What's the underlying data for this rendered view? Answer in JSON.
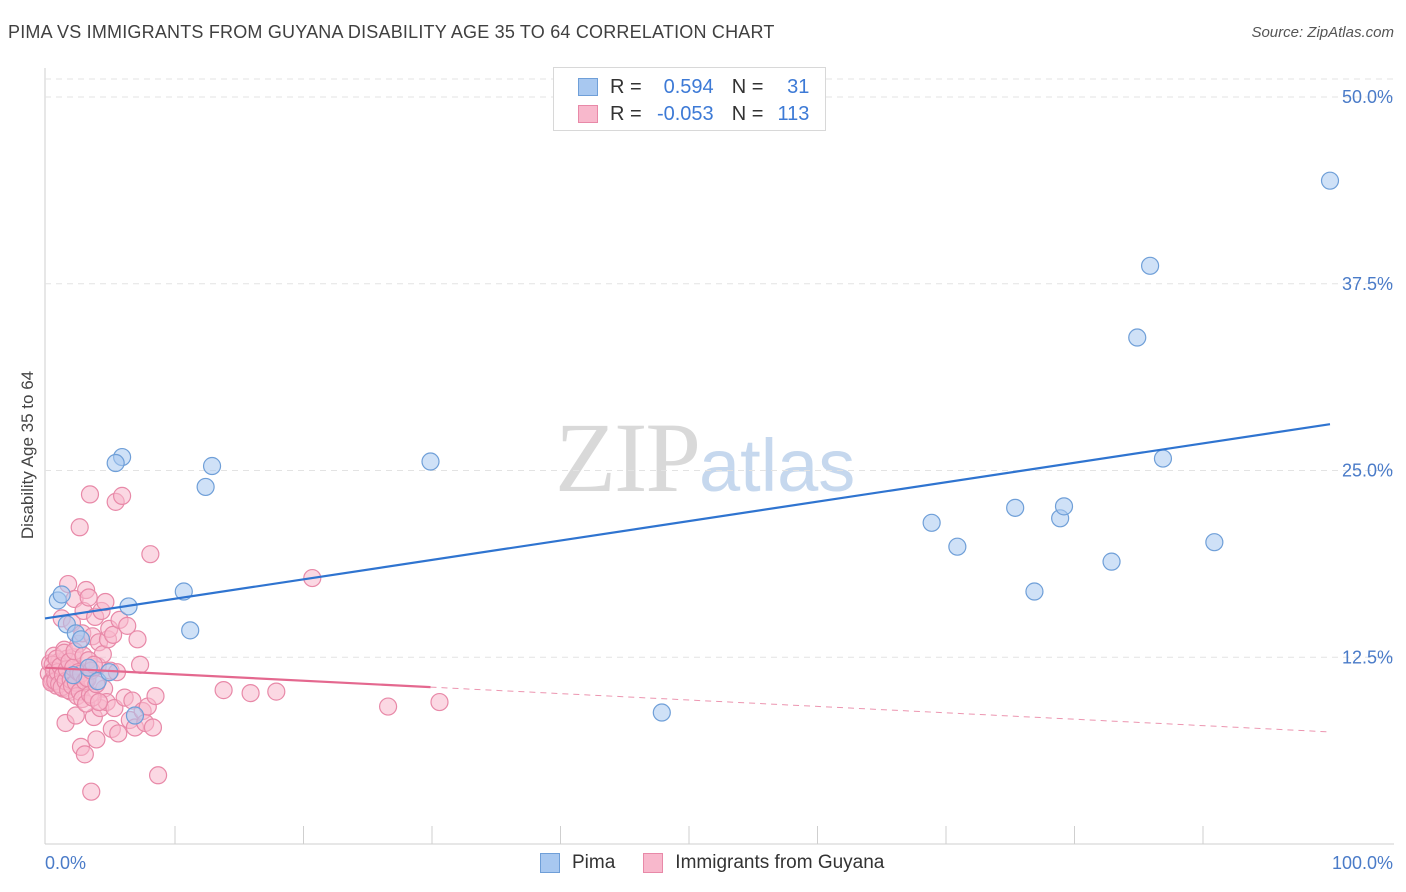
{
  "title": "PIMA VS IMMIGRANTS FROM GUYANA DISABILITY AGE 35 TO 64 CORRELATION CHART",
  "source": "Source: ZipAtlas.com",
  "watermark": {
    "zip": "ZIP",
    "atlas": "atlas"
  },
  "colors": {
    "pima_fill": "#a8c8f0",
    "pima_stroke": "#6f9fd8",
    "pima_line": "#2f74d0",
    "guyana_fill": "#f8b8cc",
    "guyana_stroke": "#e889a8",
    "guyana_line": "#e4688f",
    "tick_text": "#4a7bc8",
    "grid": "#e3e3e3"
  },
  "legend": {
    "rows": [
      {
        "r_label": "R =",
        "r_value": "0.594",
        "n_label": "N =",
        "n_value": "31"
      },
      {
        "r_label": "R =",
        "r_value": "-0.053",
        "n_label": "N =",
        "n_value": "113"
      }
    ]
  },
  "bottom_legend": {
    "pima": "Pima",
    "guyana": "Immigrants from Guyana"
  },
  "chart_data": {
    "type": "scatter",
    "title": "PIMA VS IMMIGRANTS FROM GUYANA DISABILITY AGE 35 TO 64 CORRELATION CHART",
    "xlabel": "",
    "ylabel": "Disability Age 35 to 64",
    "xlim": [
      0,
      100
    ],
    "ylim": [
      0,
      50
    ],
    "x_tick_labels": [
      "0.0%",
      "100.0%"
    ],
    "y_ticks": [
      12.5,
      25.0,
      37.5,
      50.0
    ],
    "y_tick_labels": [
      "12.5%",
      "25.0%",
      "37.5%",
      "50.0%"
    ],
    "grid": true,
    "series": [
      {
        "name": "Pima",
        "points": [
          [
            1.0,
            16.3
          ],
          [
            1.3,
            16.7
          ],
          [
            1.7,
            14.7
          ],
          [
            2.4,
            14.1
          ],
          [
            2.8,
            13.7
          ],
          [
            3.4,
            11.8
          ],
          [
            4.1,
            10.9
          ],
          [
            5.0,
            11.5
          ],
          [
            6.0,
            25.9
          ],
          [
            6.5,
            15.9
          ],
          [
            5.5,
            25.5
          ],
          [
            10.8,
            16.9
          ],
          [
            11.3,
            14.3
          ],
          [
            12.5,
            23.9
          ],
          [
            13.0,
            25.3
          ],
          [
            30.0,
            25.6
          ],
          [
            48.0,
            8.8
          ],
          [
            69.0,
            21.5
          ],
          [
            71.0,
            19.9
          ],
          [
            75.5,
            22.5
          ],
          [
            77.0,
            16.9
          ],
          [
            79.0,
            21.8
          ],
          [
            79.3,
            22.6
          ],
          [
            83.0,
            18.9
          ],
          [
            85.0,
            33.9
          ],
          [
            86.0,
            38.7
          ],
          [
            87.0,
            25.8
          ],
          [
            91.0,
            20.2
          ],
          [
            100.0,
            44.4
          ],
          [
            2.2,
            11.3
          ],
          [
            7.0,
            8.6
          ]
        ]
      },
      {
        "name": "Immigrants from Guyana",
        "points": [
          [
            0.3,
            11.4
          ],
          [
            0.4,
            12.1
          ],
          [
            0.5,
            10.9
          ],
          [
            0.6,
            11.0
          ],
          [
            0.7,
            12.6
          ],
          [
            0.8,
            11.2
          ],
          [
            0.9,
            10.6
          ],
          [
            1.0,
            11.8
          ],
          [
            1.1,
            12.2
          ],
          [
            1.2,
            11.1
          ],
          [
            1.3,
            15.1
          ],
          [
            1.4,
            10.4
          ],
          [
            1.5,
            13.0
          ],
          [
            1.6,
            8.1
          ],
          [
            1.7,
            12.4
          ],
          [
            1.8,
            17.4
          ],
          [
            1.9,
            11.3
          ],
          [
            2.0,
            10.2
          ],
          [
            2.1,
            14.8
          ],
          [
            2.2,
            12.5
          ],
          [
            2.3,
            16.4
          ],
          [
            2.4,
            8.6
          ],
          [
            2.5,
            11.7
          ],
          [
            2.6,
            13.4
          ],
          [
            2.7,
            21.2
          ],
          [
            2.8,
            6.5
          ],
          [
            2.9,
            14.1
          ],
          [
            3.0,
            15.6
          ],
          [
            3.1,
            6.0
          ],
          [
            3.2,
            17.0
          ],
          [
            3.3,
            11.0
          ],
          [
            3.4,
            16.5
          ],
          [
            3.5,
            23.4
          ],
          [
            3.6,
            3.5
          ],
          [
            3.7,
            13.9
          ],
          [
            3.8,
            8.5
          ],
          [
            3.9,
            15.2
          ],
          [
            4.0,
            7.0
          ],
          [
            4.1,
            11.9
          ],
          [
            4.2,
            13.5
          ],
          [
            4.3,
            9.1
          ],
          [
            4.4,
            15.6
          ],
          [
            4.5,
            12.7
          ],
          [
            4.6,
            10.4
          ],
          [
            4.7,
            16.2
          ],
          [
            4.8,
            9.5
          ],
          [
            4.9,
            13.7
          ],
          [
            5.0,
            14.4
          ],
          [
            5.1,
            11.6
          ],
          [
            5.2,
            7.7
          ],
          [
            5.3,
            14.0
          ],
          [
            5.4,
            9.1
          ],
          [
            5.5,
            22.9
          ],
          [
            5.6,
            11.5
          ],
          [
            5.7,
            7.4
          ],
          [
            5.8,
            15.0
          ],
          [
            6.0,
            23.3
          ],
          [
            6.2,
            9.8
          ],
          [
            6.4,
            14.6
          ],
          [
            6.6,
            8.3
          ],
          [
            6.8,
            9.6
          ],
          [
            7.0,
            7.8
          ],
          [
            7.2,
            13.7
          ],
          [
            7.4,
            12.0
          ],
          [
            7.6,
            8.9
          ],
          [
            7.8,
            8.1
          ],
          [
            8.0,
            9.2
          ],
          [
            8.2,
            19.4
          ],
          [
            8.4,
            7.8
          ],
          [
            8.6,
            9.9
          ],
          [
            8.8,
            4.6
          ],
          [
            13.9,
            10.3
          ],
          [
            16.0,
            10.1
          ],
          [
            18.0,
            10.2
          ],
          [
            20.8,
            17.8
          ],
          [
            26.7,
            9.2
          ],
          [
            30.7,
            9.5
          ],
          [
            0.5,
            10.8
          ],
          [
            0.6,
            12.0
          ],
          [
            0.7,
            11.6
          ],
          [
            0.8,
            10.9
          ],
          [
            0.9,
            12.4
          ],
          [
            1.0,
            11.5
          ],
          [
            1.1,
            10.7
          ],
          [
            1.2,
            11.9
          ],
          [
            1.3,
            10.5
          ],
          [
            1.4,
            11.3
          ],
          [
            1.5,
            12.8
          ],
          [
            1.6,
            10.9
          ],
          [
            1.7,
            11.7
          ],
          [
            1.8,
            10.3
          ],
          [
            1.9,
            12.2
          ],
          [
            2.0,
            11.0
          ],
          [
            2.1,
            10.6
          ],
          [
            2.2,
            11.8
          ],
          [
            2.3,
            12.9
          ],
          [
            2.4,
            10.8
          ],
          [
            2.5,
            9.9
          ],
          [
            2.6,
            11.5
          ],
          [
            2.7,
            10.2
          ],
          [
            2.8,
            11.4
          ],
          [
            2.9,
            9.7
          ],
          [
            3.0,
            12.6
          ],
          [
            3.1,
            10.9
          ],
          [
            3.2,
            9.4
          ],
          [
            3.3,
            11.1
          ],
          [
            3.4,
            12.3
          ],
          [
            3.5,
            10.0
          ],
          [
            3.6,
            11.6
          ],
          [
            3.7,
            9.8
          ],
          [
            3.8,
            12.0
          ],
          [
            4.0,
            10.7
          ],
          [
            4.2,
            9.5
          ]
        ]
      }
    ],
    "trend_lines": [
      {
        "name": "Pima",
        "x": [
          0,
          100
        ],
        "y": [
          15.1,
          28.1
        ]
      },
      {
        "name": "Immigrants from Guyana",
        "x": [
          0,
          30
        ],
        "y": [
          11.8,
          10.5
        ],
        "dashed_to": [
          100,
          7.5
        ]
      }
    ]
  }
}
